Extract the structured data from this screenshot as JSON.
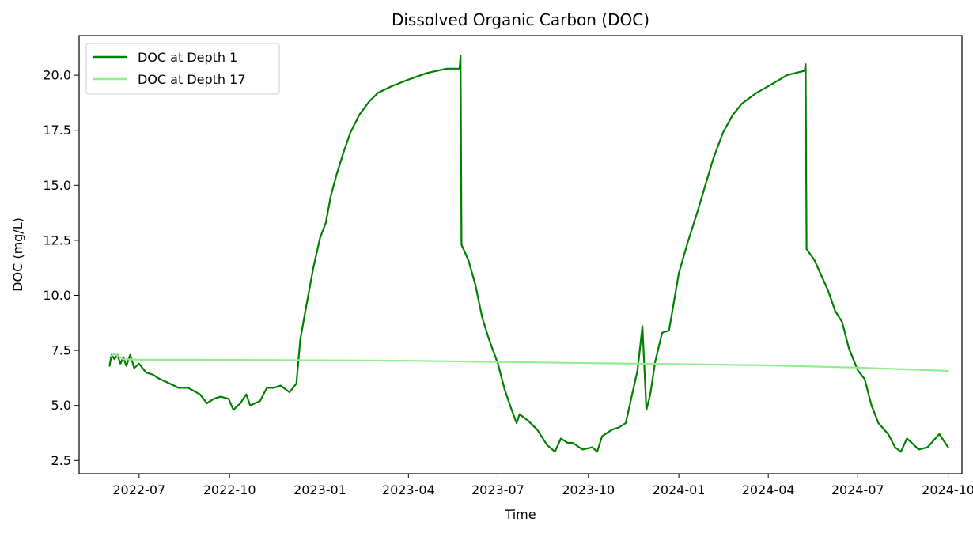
{
  "chart_data": {
    "type": "line",
    "title": "Dissolved Organic Carbon (DOC)",
    "xlabel": "Time",
    "ylabel": "DOC (mg/L)",
    "xlim": [
      "2022-05-01",
      "2024-10-15"
    ],
    "ylim": [
      1.9,
      21.8
    ],
    "x_ticks": [
      "2022-07",
      "2022-10",
      "2023-01",
      "2023-04",
      "2023-07",
      "2023-10",
      "2024-01",
      "2024-04",
      "2024-07",
      "2024-10"
    ],
    "y_ticks": [
      2.5,
      5.0,
      7.5,
      10.0,
      12.5,
      15.0,
      17.5,
      20.0
    ],
    "y_tick_labels": [
      "2.5",
      "5.0",
      "7.5",
      "10.0",
      "12.5",
      "15.0",
      "17.5",
      "20.0"
    ],
    "grid": false,
    "legend_position": "upper-left",
    "series": [
      {
        "name": "DOC at Depth 1",
        "color": "#008000",
        "points": [
          [
            "2022-06-01",
            6.8
          ],
          [
            "2022-06-03",
            7.3
          ],
          [
            "2022-06-06",
            7.1
          ],
          [
            "2022-06-09",
            7.3
          ],
          [
            "2022-06-12",
            6.9
          ],
          [
            "2022-06-15",
            7.2
          ],
          [
            "2022-06-18",
            6.8
          ],
          [
            "2022-06-22",
            7.3
          ],
          [
            "2022-06-26",
            6.7
          ],
          [
            "2022-07-01",
            6.9
          ],
          [
            "2022-07-08",
            6.5
          ],
          [
            "2022-07-15",
            6.4
          ],
          [
            "2022-07-22",
            6.2
          ],
          [
            "2022-08-01",
            6.0
          ],
          [
            "2022-08-10",
            5.8
          ],
          [
            "2022-08-20",
            5.8
          ],
          [
            "2022-09-01",
            5.5
          ],
          [
            "2022-09-08",
            5.1
          ],
          [
            "2022-09-15",
            5.3
          ],
          [
            "2022-09-22",
            5.4
          ],
          [
            "2022-09-30",
            5.3
          ],
          [
            "2022-10-05",
            4.8
          ],
          [
            "2022-10-12",
            5.1
          ],
          [
            "2022-10-18",
            5.5
          ],
          [
            "2022-10-22",
            5.0
          ],
          [
            "2022-11-01",
            5.2
          ],
          [
            "2022-11-08",
            5.8
          ],
          [
            "2022-11-15",
            5.8
          ],
          [
            "2022-11-22",
            5.9
          ],
          [
            "2022-12-01",
            5.6
          ],
          [
            "2022-12-08",
            6.0
          ],
          [
            "2022-12-12",
            8.0
          ],
          [
            "2022-12-18",
            9.5
          ],
          [
            "2022-12-25",
            11.2
          ],
          [
            "2023-01-01",
            12.6
          ],
          [
            "2023-01-07",
            13.3
          ],
          [
            "2023-01-12",
            14.5
          ],
          [
            "2023-01-18",
            15.5
          ],
          [
            "2023-01-25",
            16.5
          ],
          [
            "2023-02-01",
            17.4
          ],
          [
            "2023-02-10",
            18.2
          ],
          [
            "2023-02-20",
            18.8
          ],
          [
            "2023-03-01",
            19.2
          ],
          [
            "2023-03-15",
            19.5
          ],
          [
            "2023-04-01",
            19.8
          ],
          [
            "2023-04-20",
            20.1
          ],
          [
            "2023-05-10",
            20.3
          ],
          [
            "2023-05-23",
            20.3
          ],
          [
            "2023-05-24",
            20.9
          ],
          [
            "2023-05-25",
            12.3
          ],
          [
            "2023-06-01",
            11.6
          ],
          [
            "2023-06-08",
            10.5
          ],
          [
            "2023-06-15",
            9.0
          ],
          [
            "2023-06-22",
            8.0
          ],
          [
            "2023-07-01",
            6.9
          ],
          [
            "2023-07-08",
            5.7
          ],
          [
            "2023-07-15",
            4.8
          ],
          [
            "2023-07-20",
            4.2
          ],
          [
            "2023-07-23",
            4.6
          ],
          [
            "2023-08-01",
            4.3
          ],
          [
            "2023-08-10",
            3.9
          ],
          [
            "2023-08-20",
            3.2
          ],
          [
            "2023-08-28",
            2.9
          ],
          [
            "2023-09-03",
            3.5
          ],
          [
            "2023-09-10",
            3.3
          ],
          [
            "2023-09-15",
            3.3
          ],
          [
            "2023-09-25",
            3.0
          ],
          [
            "2023-10-05",
            3.1
          ],
          [
            "2023-10-10",
            2.9
          ],
          [
            "2023-10-15",
            3.6
          ],
          [
            "2023-10-25",
            3.9
          ],
          [
            "2023-11-01",
            4.0
          ],
          [
            "2023-11-08",
            4.2
          ],
          [
            "2023-11-15",
            5.6
          ],
          [
            "2023-11-20",
            6.6
          ],
          [
            "2023-11-25",
            8.6
          ],
          [
            "2023-11-29",
            4.8
          ],
          [
            "2023-12-03",
            5.5
          ],
          [
            "2023-12-08",
            7.0
          ],
          [
            "2023-12-15",
            8.3
          ],
          [
            "2023-12-22",
            8.4
          ],
          [
            "2024-01-01",
            11.0
          ],
          [
            "2024-01-10",
            12.4
          ],
          [
            "2024-01-20",
            13.8
          ],
          [
            "2024-01-28",
            15.0
          ],
          [
            "2024-02-05",
            16.2
          ],
          [
            "2024-02-15",
            17.4
          ],
          [
            "2024-02-25",
            18.2
          ],
          [
            "2024-03-05",
            18.7
          ],
          [
            "2024-03-20",
            19.2
          ],
          [
            "2024-04-05",
            19.6
          ],
          [
            "2024-04-20",
            20.0
          ],
          [
            "2024-05-08",
            20.2
          ],
          [
            "2024-05-09",
            20.5
          ],
          [
            "2024-05-10",
            12.1
          ],
          [
            "2024-05-18",
            11.6
          ],
          [
            "2024-05-25",
            10.9
          ],
          [
            "2024-06-01",
            10.2
          ],
          [
            "2024-06-08",
            9.3
          ],
          [
            "2024-06-15",
            8.8
          ],
          [
            "2024-06-22",
            7.6
          ],
          [
            "2024-07-01",
            6.6
          ],
          [
            "2024-07-08",
            6.2
          ],
          [
            "2024-07-15",
            5.0
          ],
          [
            "2024-07-22",
            4.2
          ],
          [
            "2024-08-01",
            3.7
          ],
          [
            "2024-08-08",
            3.1
          ],
          [
            "2024-08-14",
            2.9
          ],
          [
            "2024-08-20",
            3.5
          ],
          [
            "2024-08-25",
            3.3
          ],
          [
            "2024-09-01",
            3.0
          ],
          [
            "2024-09-10",
            3.1
          ],
          [
            "2024-09-18",
            3.5
          ],
          [
            "2024-09-22",
            3.7
          ],
          [
            "2024-10-01",
            3.1
          ]
        ]
      },
      {
        "name": "DOC at Depth 17",
        "color": "#90ee90",
        "points": [
          [
            "2022-06-01",
            7.2
          ],
          [
            "2022-06-06",
            7.35
          ],
          [
            "2022-06-15",
            7.1
          ],
          [
            "2022-07-01",
            7.08
          ],
          [
            "2022-10-01",
            7.07
          ],
          [
            "2023-01-01",
            7.05
          ],
          [
            "2023-04-01",
            7.03
          ],
          [
            "2023-07-01",
            6.98
          ],
          [
            "2023-10-01",
            6.92
          ],
          [
            "2024-01-01",
            6.88
          ],
          [
            "2024-04-01",
            6.82
          ],
          [
            "2024-07-01",
            6.72
          ],
          [
            "2024-10-01",
            6.57
          ]
        ]
      }
    ]
  }
}
